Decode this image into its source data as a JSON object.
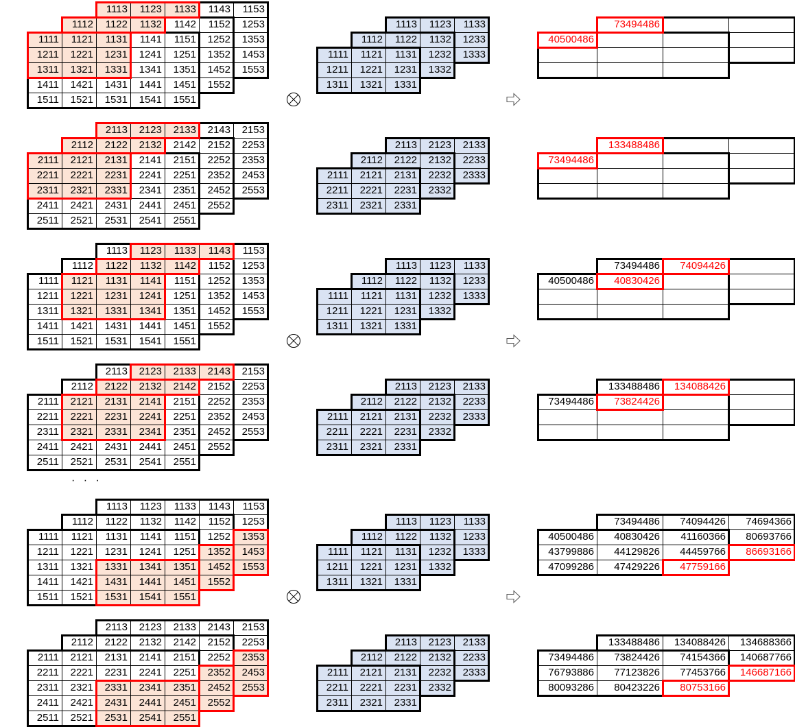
{
  "colors": {
    "highlight_fill": "#fce4d6",
    "kernel_fill": "#dae3f3",
    "highlight_border": "#ff0000",
    "border": "#000000"
  },
  "symbols": {
    "operator_icon": "circled-times",
    "result_icon": "outline-right-arrow",
    "ellipsis": "· · ·"
  },
  "inputs": {
    "A": [
      [
        null,
        null,
        "1113",
        "1123",
        "1133",
        "1143",
        "1153"
      ],
      [
        null,
        "1112",
        "1122",
        "1132",
        "1142",
        "1152",
        "1253"
      ],
      [
        "1111",
        "1121",
        "1131",
        "1141",
        "1151",
        "1252",
        "1353"
      ],
      [
        "1211",
        "1221",
        "1231",
        "1241",
        "1251",
        "1352",
        "1453"
      ],
      [
        "1311",
        "1321",
        "1331",
        "1341",
        "1351",
        "1452",
        "1553"
      ],
      [
        "1411",
        "1421",
        "1431",
        "1441",
        "1451",
        "1552",
        null
      ],
      [
        "1511",
        "1521",
        "1531",
        "1541",
        "1551",
        null,
        null
      ]
    ],
    "B": [
      [
        null,
        null,
        "2113",
        "2123",
        "2133",
        "2143",
        "2153"
      ],
      [
        null,
        "2112",
        "2122",
        "2132",
        "2142",
        "2152",
        "2253"
      ],
      [
        "2111",
        "2121",
        "2131",
        "2141",
        "2151",
        "2252",
        "2353"
      ],
      [
        "2211",
        "2221",
        "2231",
        "2241",
        "2251",
        "2352",
        "2453"
      ],
      [
        "2311",
        "2321",
        "2331",
        "2341",
        "2351",
        "2452",
        "2553"
      ],
      [
        "2411",
        "2421",
        "2431",
        "2441",
        "2451",
        "2552",
        null
      ],
      [
        "2511",
        "2521",
        "2531",
        "2541",
        "2551",
        null,
        null
      ]
    ]
  },
  "kernels": {
    "A": [
      [
        null,
        null,
        "1113",
        "1123",
        "1133"
      ],
      [
        null,
        "1112",
        "1122",
        "1132",
        "1233"
      ],
      [
        "1111",
        "1121",
        "1131",
        "1232",
        "1333"
      ],
      [
        "1211",
        "1221",
        "1231",
        "1332",
        null
      ],
      [
        "1311",
        "1321",
        "1331",
        null,
        null
      ]
    ],
    "B": [
      [
        null,
        null,
        "2113",
        "2123",
        "2133"
      ],
      [
        null,
        "2112",
        "2122",
        "2132",
        "2233"
      ],
      [
        "2111",
        "2121",
        "2131",
        "2232",
        "2333"
      ],
      [
        "2211",
        "2221",
        "2231",
        "2332",
        null
      ],
      [
        "2311",
        "2321",
        "2331",
        null,
        null
      ]
    ]
  },
  "blocks": [
    {
      "input": "A",
      "kernel": "A",
      "highlight": [
        "1113",
        "1123",
        "1133",
        "1112",
        "1122",
        "1132",
        "1111",
        "1121",
        "1131",
        "1211",
        "1221",
        "1231",
        "1311",
        "1321",
        "1331"
      ],
      "output": [
        [
          null,
          "73494486",
          "",
          ""
        ],
        [
          "40500486",
          "",
          "",
          ""
        ],
        [
          "",
          "",
          "",
          ""
        ],
        [
          "",
          "",
          "",
          null
        ]
      ],
      "output_red": [
        [
          0,
          1
        ],
        [
          1,
          0
        ]
      ]
    },
    {
      "input": "B",
      "kernel": "B",
      "highlight": [
        "2113",
        "2123",
        "2133",
        "2112",
        "2122",
        "2132",
        "2111",
        "2121",
        "2131",
        "2211",
        "2221",
        "2231",
        "2311",
        "2321",
        "2331"
      ],
      "output": [
        [
          null,
          "133488486",
          "",
          ""
        ],
        [
          "73494486",
          "",
          "",
          ""
        ],
        [
          "",
          "",
          "",
          ""
        ],
        [
          "",
          "",
          "",
          null
        ]
      ],
      "output_red": [
        [
          0,
          1
        ],
        [
          1,
          0
        ]
      ]
    },
    {
      "input": "A",
      "kernel": "A",
      "highlight": [
        "1123",
        "1133",
        "1143",
        "1122",
        "1132",
        "1142",
        "1121",
        "1131",
        "1141",
        "1221",
        "1231",
        "1241",
        "1321",
        "1331",
        "1341"
      ],
      "output": [
        [
          null,
          "73494486",
          "74094426",
          ""
        ],
        [
          "40500486",
          "40830426",
          "",
          ""
        ],
        [
          "",
          "",
          "",
          ""
        ],
        [
          "",
          "",
          "",
          null
        ]
      ],
      "output_red": [
        [
          0,
          2
        ],
        [
          1,
          1
        ]
      ]
    },
    {
      "input": "B",
      "kernel": "B",
      "highlight": [
        "2123",
        "2133",
        "2143",
        "2122",
        "2132",
        "2142",
        "2121",
        "2131",
        "2141",
        "2221",
        "2231",
        "2241",
        "2321",
        "2331",
        "2341"
      ],
      "output": [
        [
          null,
          "133488486",
          "134088426",
          ""
        ],
        [
          "73494486",
          "73824426",
          "",
          ""
        ],
        [
          "",
          "",
          "",
          ""
        ],
        [
          "",
          "",
          "",
          null
        ]
      ],
      "output_red": [
        [
          0,
          2
        ],
        [
          1,
          1
        ]
      ]
    },
    {
      "input": "A",
      "kernel": "A",
      "highlight": [
        "1353",
        "1453",
        "1553",
        "1352",
        "1452",
        "1552",
        "1331",
        "1341",
        "1351",
        "1431",
        "1441",
        "1451",
        "1531",
        "1541",
        "1551"
      ],
      "output": [
        [
          null,
          "73494486",
          "74094426",
          "74694366"
        ],
        [
          "40500486",
          "40830426",
          "41160366",
          "80693766"
        ],
        [
          "43799886",
          "44129826",
          "44459766",
          "86693166"
        ],
        [
          "47099286",
          "47429226",
          "47759166",
          null
        ]
      ],
      "output_red": [
        [
          2,
          3
        ],
        [
          3,
          2
        ]
      ]
    },
    {
      "input": "B",
      "kernel": "B",
      "highlight": [
        "2353",
        "2453",
        "2553",
        "2352",
        "2452",
        "2552",
        "2331",
        "2341",
        "2351",
        "2431",
        "2441",
        "2451",
        "2531",
        "2541",
        "2551"
      ],
      "output": [
        [
          null,
          "133488486",
          "134088426",
          "134688366"
        ],
        [
          "73494486",
          "73824426",
          "74154366",
          "140687766"
        ],
        [
          "76793886",
          "77123826",
          "77453766",
          "146687166"
        ],
        [
          "80093286",
          "80423226",
          "80753166",
          null
        ]
      ],
      "output_red": [
        [
          2,
          3
        ],
        [
          3,
          2
        ]
      ]
    }
  ]
}
